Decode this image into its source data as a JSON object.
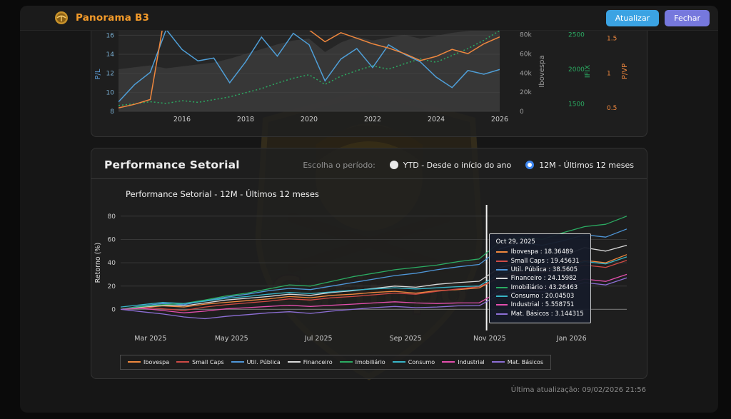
{
  "app": {
    "title": "Panorama B3",
    "buttons": {
      "refresh": "Atualizar",
      "close": "Fechar"
    }
  },
  "watermark": {
    "text": "Garimpo"
  },
  "section": {
    "title": "Performance Setorial",
    "period_label": "Escolha o período:",
    "options": [
      {
        "label": "YTD - Desde o início do ano",
        "selected": false
      },
      {
        "label": "12M - Últimos 12 meses",
        "selected": true
      }
    ]
  },
  "footer": {
    "last_update": "Última atualização: 09/02/2026 21:56"
  },
  "chart_data": [
    {
      "type": "line",
      "note": "multi-axis historical valuation chart, top portion cropped by window",
      "x": {
        "start": 2014,
        "end": 2026
      },
      "x_ticks": [
        2016,
        2018,
        2020,
        2022,
        2024,
        2026
      ],
      "axes": {
        "pl": {
          "label": "P/L",
          "color": "#5b9bd5",
          "range": [
            8,
            16.85
          ],
          "ticks": [
            {
              "v": 8,
              "t": "8"
            },
            {
              "v": 10,
              "t": "10"
            },
            {
              "v": 12,
              "t": "12"
            },
            {
              "v": 14,
              "t": "14"
            },
            {
              "v": 16,
              "t": "16"
            }
          ]
        },
        "ibov": {
          "label": "Ibovespa",
          "color": "#a0a0a0",
          "range": [
            0,
            88000
          ],
          "ticks": [
            {
              "v": 0,
              "t": "0"
            },
            {
              "v": 20000,
              "t": "20k"
            },
            {
              "v": 40000,
              "t": "40k"
            },
            {
              "v": 60000,
              "t": "60k"
            },
            {
              "v": 80000,
              "t": "80k"
            }
          ]
        },
        "ifix": {
          "label": "IFIX",
          "color": "#2bab62",
          "range": [
            1390,
            2610
          ],
          "ticks": [
            {
              "v": 1500,
              "t": "1500"
            },
            {
              "v": 2000,
              "t": "2000"
            },
            {
              "v": 2500,
              "t": "2500"
            }
          ]
        },
        "pvp": {
          "label": "P/VP",
          "color": "#f0883e",
          "range": [
            0.45,
            1.66
          ],
          "ticks": [
            {
              "v": 0.5,
              "t": "0.5"
            },
            {
              "v": 1,
              "t": "1"
            },
            {
              "v": 1.5,
              "t": "1.5"
            }
          ]
        }
      },
      "series": [
        {
          "name": "Ibovespa",
          "axis": "ibov",
          "type": "area",
          "color": "#454545",
          "values": [
            44000,
            46000,
            48000,
            45000,
            47000,
            49000,
            51000,
            55000,
            60000,
            65000,
            70000,
            74000,
            76000,
            62000,
            72000,
            78000,
            74000,
            77000,
            80000,
            76000,
            79000,
            82000,
            84000,
            86000,
            87000
          ]
        },
        {
          "name": "IFIX",
          "axis": "ifix",
          "type": "dotted",
          "color": "#2bab62",
          "values": [
            1475,
            1500,
            1530,
            1505,
            1545,
            1520,
            1560,
            1600,
            1660,
            1720,
            1800,
            1870,
            1920,
            1780,
            1900,
            1980,
            2050,
            2000,
            2080,
            2150,
            2100,
            2200,
            2300,
            2420,
            2560
          ]
        },
        {
          "name": "P/L",
          "axis": "pl",
          "type": "line",
          "color": "#4f9fd8",
          "values": [
            9.0,
            10.8,
            12.1,
            16.6,
            14.5,
            13.3,
            13.6,
            11.0,
            13.2,
            15.8,
            13.8,
            16.2,
            15.0,
            11.2,
            13.5,
            14.6,
            12.6,
            15.0,
            14.0,
            13.2,
            11.6,
            10.5,
            12.3,
            11.9,
            12.4
          ]
        },
        {
          "name": "P/VP",
          "axis": "pvp",
          "type": "line",
          "color": "#f0883e",
          "values": [
            0.5,
            0.55,
            0.62,
            1.95,
            1.9,
            1.85,
            1.88,
            1.82,
            1.86,
            1.92,
            1.88,
            1.78,
            1.62,
            1.45,
            1.58,
            1.5,
            1.42,
            1.36,
            1.28,
            1.18,
            1.24,
            1.34,
            1.28,
            1.42,
            1.52
          ]
        }
      ]
    },
    {
      "type": "line",
      "title": "Performance Setorial - 12M - Últimos 12 meses",
      "ylabel": "Retorno (%)",
      "ylim": [
        -12,
        86
      ],
      "y_ticks": [
        0,
        20,
        40,
        60,
        80
      ],
      "x_ticks": [
        {
          "label": "Mar 2025",
          "pos": 0.059
        },
        {
          "label": "May 2025",
          "pos": 0.219
        },
        {
          "label": "Jul 2025",
          "pos": 0.391
        },
        {
          "label": "Sep 2025",
          "pos": 0.563
        },
        {
          "label": "Nov 2025",
          "pos": 0.729
        },
        {
          "label": "Jan 2026",
          "pos": 0.891
        }
      ],
      "crosshair_pos": 0.723,
      "series": [
        {
          "name": "Ibovespa",
          "color": "#f0883e",
          "values": [
            0,
            1.5,
            3,
            2,
            4.5,
            6,
            7.5,
            9,
            11,
            10,
            12,
            13,
            14.5,
            15.5,
            14,
            16,
            17,
            18.36,
            28,
            33,
            35,
            37,
            42,
            40,
            47
          ]
        },
        {
          "name": "Small Caps",
          "color": "#cf4a45",
          "values": [
            0,
            2,
            0.5,
            -1,
            2,
            4,
            5.5,
            7,
            9,
            8,
            10,
            11,
            12.5,
            14,
            13,
            15.5,
            17.5,
            19.46,
            27,
            31,
            32,
            34,
            38,
            36,
            42
          ]
        },
        {
          "name": "Util. Pública",
          "color": "#4f97d9",
          "values": [
            0,
            3,
            5,
            4,
            7.5,
            10.5,
            13,
            16,
            18,
            17,
            20,
            23,
            26,
            29,
            31,
            34,
            36.5,
            38.56,
            52,
            57,
            55,
            59,
            64,
            62,
            69
          ]
        },
        {
          "name": "Financeiro",
          "color": "#d9d9d9",
          "values": [
            0,
            2,
            3.5,
            3,
            5.5,
            8,
            9.5,
            11,
            13,
            12,
            14.5,
            16,
            18,
            20,
            19,
            21.5,
            23,
            24.16,
            36,
            40,
            42,
            46,
            53,
            50,
            55
          ]
        },
        {
          "name": "Imobiliário",
          "color": "#2bab62",
          "values": [
            0,
            2.5,
            4,
            5,
            8,
            11.5,
            14,
            17.5,
            21,
            20,
            24,
            28,
            31,
            34,
            36,
            38,
            41,
            43.26,
            58,
            62,
            60,
            66,
            71,
            73,
            80
          ]
        },
        {
          "name": "Consumo",
          "color": "#38b6c8",
          "values": [
            2,
            4,
            6,
            5,
            7,
            9.5,
            11,
            13,
            14.5,
            13.5,
            15,
            16.5,
            17.5,
            18.5,
            17.5,
            18.5,
            19.5,
            20.05,
            31,
            34,
            33,
            36,
            41,
            39,
            45
          ]
        },
        {
          "name": "Industrial",
          "color": "#e44fae",
          "values": [
            0,
            1,
            -1,
            -3,
            -1.5,
            0.5,
            1.5,
            2.5,
            3.5,
            2.5,
            3.5,
            4.5,
            5.5,
            6.5,
            5.5,
            5,
            5.5,
            5.56,
            16,
            19,
            18,
            21,
            26,
            24,
            30
          ]
        },
        {
          "name": "Mat. Básicos",
          "color": "#8d6fd6",
          "values": [
            0,
            -2,
            -4,
            -6.5,
            -8,
            -6,
            -4.5,
            -3,
            -2,
            -3.5,
            -1.5,
            0,
            1.5,
            2.5,
            1.5,
            2,
            3,
            3.14,
            13,
            16,
            15,
            18,
            23,
            21,
            27
          ]
        }
      ],
      "tooltip": {
        "date": "Oct 29, 2025",
        "items": [
          {
            "name": "Ibovespa",
            "value": "18.36489"
          },
          {
            "name": "Small Caps",
            "value": "19.45631"
          },
          {
            "name": "Util. Pública",
            "value": "38.5605"
          },
          {
            "name": "Financeiro",
            "value": "24.15982"
          },
          {
            "name": "Imobiliário",
            "value": "43.26463"
          },
          {
            "name": "Consumo",
            "value": "20.04503"
          },
          {
            "name": "Industrial",
            "value": "5.558751"
          },
          {
            "name": "Mat. Básicos",
            "value": "3.144315"
          }
        ]
      }
    }
  ]
}
